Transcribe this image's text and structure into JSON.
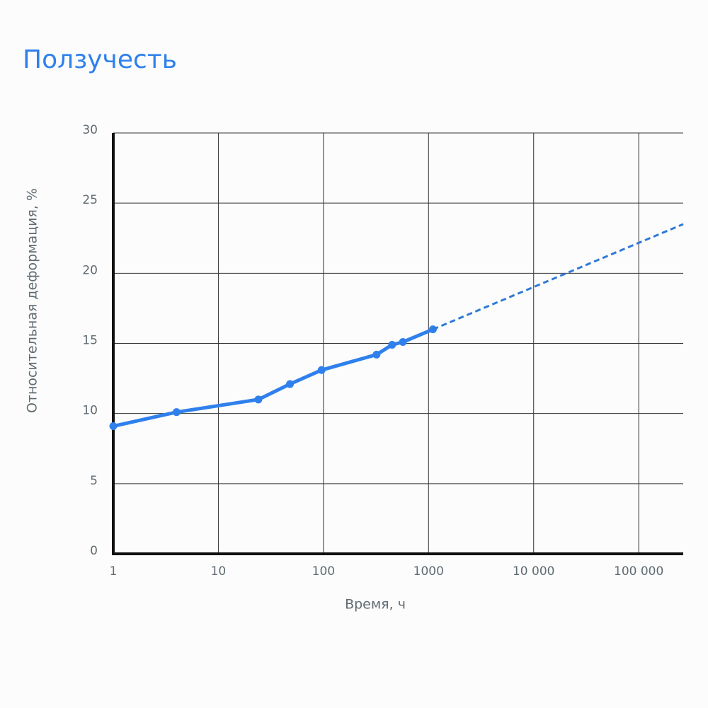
{
  "chart_data": {
    "type": "line",
    "title": "Ползучесть",
    "xlabel": "Время, ч",
    "ylabel": "Относительная деформация, %",
    "xscale": "log",
    "grid": true,
    "xlim": [
      1,
      265000
    ],
    "ylim": [
      0,
      30
    ],
    "xticks": [
      1,
      10,
      100,
      1000,
      {
        "value": 10000,
        "label": "10 000"
      },
      {
        "value": 100000,
        "label": "100 000"
      }
    ],
    "yticks": [
      0,
      5,
      10,
      15,
      20,
      25,
      30
    ],
    "series": [
      {
        "color": "#2f80ed",
        "style": "solid",
        "markers": true,
        "x": [
          1,
          4,
          24,
          48,
          96,
          320,
          450,
          570,
          1100
        ],
        "values": [
          9.1,
          10.1,
          11.0,
          12.1,
          13.1,
          14.2,
          14.9,
          15.1,
          16.0
        ]
      },
      {
        "color": "#2f7ad6",
        "style": "dashed",
        "markers": false,
        "x": [
          1100,
          265000
        ],
        "values": [
          16.0,
          23.5
        ]
      }
    ]
  }
}
